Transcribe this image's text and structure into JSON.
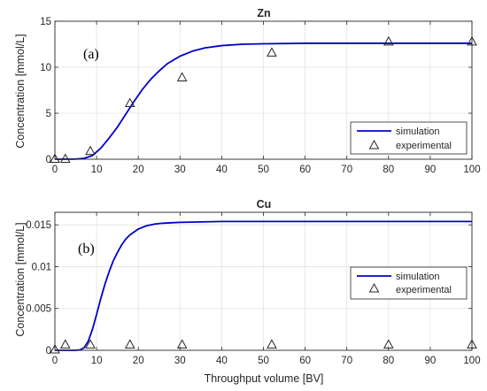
{
  "figure": {
    "xlabel": "Throughput volume [BV]"
  },
  "colors": {
    "simulation": "#0000cc",
    "experimental": "#262626",
    "grid": "#e3e3e3",
    "axis": "#262626"
  },
  "chart_data": [
    {
      "type": "line",
      "title": "Zn",
      "panel_label": "(a)",
      "xlabel": "",
      "ylabel": "Concentration [mmol/L]",
      "xlim": [
        0,
        100
      ],
      "ylim": [
        0,
        15
      ],
      "xticks": [
        "0",
        "10",
        "20",
        "30",
        "40",
        "50",
        "60",
        "70",
        "80",
        "90",
        "100"
      ],
      "yticks": [
        "0",
        "5",
        "10",
        "15"
      ],
      "grid": true,
      "legend_position": "bottom-right",
      "series": [
        {
          "name": "simulation",
          "kind": "line",
          "x": [
            0,
            5,
            7,
            9,
            11,
            13,
            15,
            17,
            19,
            21,
            23,
            25,
            27,
            30,
            33,
            36,
            40,
            45,
            50,
            60,
            70,
            80,
            90,
            100
          ],
          "y": [
            0,
            0.02,
            0.1,
            0.4,
            1.2,
            2.3,
            3.5,
            4.9,
            6.3,
            7.6,
            8.7,
            9.6,
            10.4,
            11.2,
            11.75,
            12.1,
            12.35,
            12.5,
            12.55,
            12.6,
            12.6,
            12.6,
            12.6,
            12.6
          ]
        },
        {
          "name": "experimental",
          "kind": "scatter",
          "x": [
            0,
            2.5,
            8.5,
            18,
            30.5,
            52,
            80,
            100
          ],
          "y": [
            0.05,
            0.05,
            0.9,
            6.1,
            8.9,
            11.6,
            12.8,
            12.8
          ]
        }
      ]
    },
    {
      "type": "line",
      "title": "Cu",
      "panel_label": "(b)",
      "xlabel": "Throughput volume [BV]",
      "ylabel": "Concentration [mmol/L]",
      "xlim": [
        0,
        100
      ],
      "ylim": [
        0,
        0.0165
      ],
      "xticks": [
        "0",
        "10",
        "20",
        "30",
        "40",
        "50",
        "60",
        "70",
        "80",
        "90",
        "100"
      ],
      "yticks": [
        "0",
        "0.005",
        "0.01",
        "0.015"
      ],
      "grid": true,
      "legend_position": "middle-right",
      "series": [
        {
          "name": "simulation",
          "kind": "line",
          "x": [
            0,
            5,
            6,
            7,
            8,
            9,
            10,
            11,
            12,
            13,
            14,
            15,
            16,
            17,
            18,
            20,
            22,
            24,
            26,
            28,
            30,
            35,
            40,
            50,
            60,
            80,
            100
          ],
          "y": [
            0,
            0,
            5e-05,
            0.0003,
            0.0011,
            0.0025,
            0.0043,
            0.0062,
            0.0079,
            0.0094,
            0.0107,
            0.0117,
            0.0126,
            0.0133,
            0.0138,
            0.0145,
            0.0149,
            0.0151,
            0.0152,
            0.01525,
            0.0153,
            0.01535,
            0.0154,
            0.0154,
            0.0154,
            0.0154,
            0.0154
          ]
        },
        {
          "name": "experimental",
          "kind": "scatter",
          "x": [
            0,
            2.5,
            8.5,
            18,
            30.5,
            52,
            80,
            100
          ],
          "y": [
            0.0001,
            0.0007,
            0.0007,
            0.0007,
            0.0007,
            0.0007,
            0.0007,
            0.0007
          ]
        }
      ]
    }
  ]
}
